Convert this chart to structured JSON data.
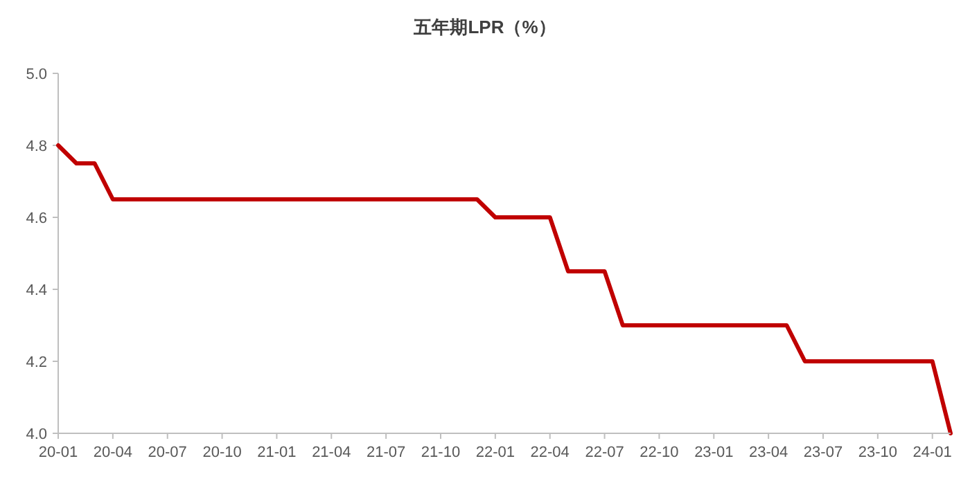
{
  "chart_data": {
    "type": "line",
    "title": "五年期LPR（%）",
    "categories": [
      "20-01",
      null,
      null,
      "20-04",
      null,
      null,
      "20-07",
      null,
      null,
      "20-10",
      null,
      null,
      "21-01",
      null,
      null,
      "21-04",
      null,
      null,
      "21-07",
      null,
      null,
      "21-10",
      null,
      null,
      "22-01",
      null,
      null,
      "22-04",
      null,
      null,
      "22-07",
      null,
      null,
      "22-10",
      null,
      null,
      "23-01",
      null,
      null,
      "23-04",
      null,
      null,
      "23-07",
      null,
      null,
      "23-10",
      null,
      null,
      "24-01",
      null
    ],
    "series": [
      {
        "color": "#c00000",
        "values": [
          4.8,
          4.75,
          4.75,
          4.65,
          4.65,
          4.65,
          4.65,
          4.65,
          4.65,
          4.65,
          4.65,
          4.65,
          4.65,
          4.65,
          4.65,
          4.65,
          4.65,
          4.65,
          4.65,
          4.65,
          4.65,
          4.65,
          4.65,
          4.65,
          4.6,
          4.6,
          4.6,
          4.6,
          4.45,
          4.45,
          4.45,
          4.3,
          4.3,
          4.3,
          4.3,
          4.3,
          4.3,
          4.3,
          4.3,
          4.3,
          4.3,
          4.2,
          4.2,
          4.2,
          4.2,
          4.2,
          4.2,
          4.2,
          4.2,
          4.0
        ]
      }
    ],
    "ylim": [
      4.0,
      5.0
    ],
    "yticks": [
      {
        "value": 4.0,
        "label": "4.0"
      },
      {
        "value": 4.2,
        "label": "4.2"
      },
      {
        "value": 4.4,
        "label": "4.4"
      },
      {
        "value": 4.6,
        "label": "4.6"
      },
      {
        "value": 4.8,
        "label": "4.8"
      },
      {
        "value": 5.0,
        "label": "5.0"
      }
    ],
    "grid": false,
    "marker": "none",
    "line_style": "solid"
  }
}
